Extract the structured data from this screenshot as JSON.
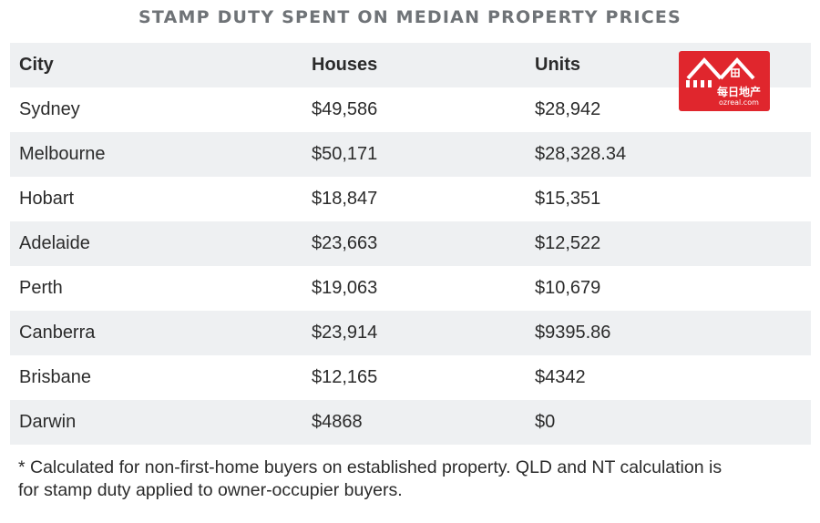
{
  "title": "STAMP DUTY SPENT ON MEDIAN PROPERTY PRICES",
  "table": {
    "headers": [
      "City",
      "Houses",
      "Units"
    ],
    "rows": [
      {
        "city": "Sydney",
        "houses": "$49,586",
        "units": "$28,942"
      },
      {
        "city": "Melbourne",
        "houses": "$50,171",
        "units": "$28,328.34"
      },
      {
        "city": "Hobart",
        "houses": "$18,847",
        "units": "$15,351"
      },
      {
        "city": "Adelaide",
        "houses": "$23,663",
        "units": "$12,522"
      },
      {
        "city": "Perth",
        "houses": "$19,063",
        "units": "$10,679"
      },
      {
        "city": "Canberra",
        "houses": "$23,914",
        "units": "$9395.86"
      },
      {
        "city": "Brisbane",
        "houses": "$12,165",
        "units": "$4342"
      },
      {
        "city": "Darwin",
        "houses": "$4868",
        "units": "$0"
      }
    ]
  },
  "footnote_lines": [
    "* Calculated for non-first-home buyers on established property. QLD and NT calculation is",
    "for stamp duty applied to owner-occupier buyers."
  ],
  "watermark": {
    "text_cn": "每日地产",
    "text_en": "ozreal.com",
    "color": "#e0262d"
  },
  "colors": {
    "shade_row": "#eef0f2",
    "title": "#6f7377"
  }
}
